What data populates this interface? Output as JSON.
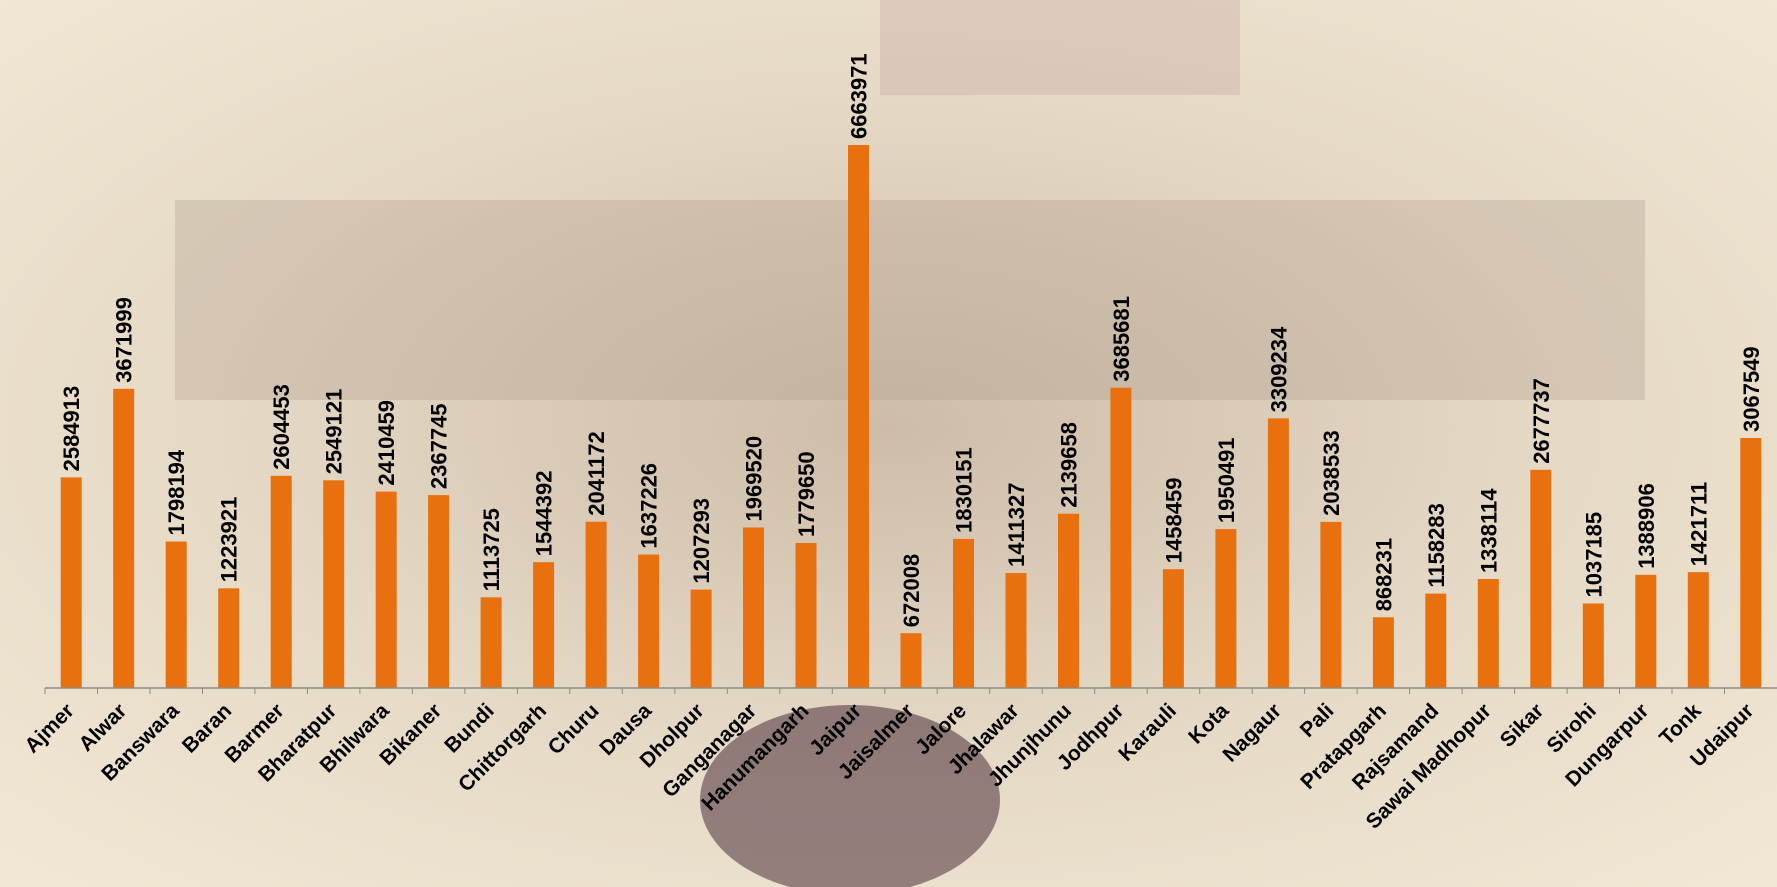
{
  "colors": {
    "bar": "#E8700E",
    "axis": "#8C8C8C",
    "label": "#000000",
    "background": "#EDE3CF"
  },
  "chart_data": {
    "type": "bar",
    "title": "",
    "xlabel": "",
    "ylabel": "",
    "ylim": [
      0,
      7000000
    ],
    "grid": false,
    "legend": "none",
    "data_labels": true,
    "categories": [
      "Ajmer",
      "Alwar",
      "Banswara",
      "Baran",
      "Barmer",
      "Bharatpur",
      "Bhilwara",
      "Bikaner",
      "Bundi",
      "Chittorgarh",
      "Churu",
      "Dausa",
      "Dholpur",
      "Ganganagar",
      "Hanumangarh",
      "Jaipur",
      "Jaisalmer",
      "Jalore",
      "Jhalawar",
      "Jhunjhunu",
      "Jodhpur",
      "Karauli",
      "Kota",
      "Nagaur",
      "Pali",
      "Pratapgarh",
      "Rajsamand",
      "Sawai Madhopur",
      "Sikar",
      "Sirohi",
      "Dungarpur",
      "Tonk",
      "Udaipur"
    ],
    "values": [
      2584913,
      3671999,
      1798194,
      1223921,
      2604453,
      2549121,
      2410459,
      2367745,
      1113725,
      1544392,
      2041172,
      1637226,
      1207293,
      1969520,
      1779650,
      6663971,
      672008,
      1830151,
      1411327,
      2139658,
      3685681,
      1458459,
      1950491,
      3309234,
      2038533,
      868231,
      1158283,
      1338114,
      2677737,
      1037185,
      1388906,
      1421711,
      3067549
    ]
  }
}
